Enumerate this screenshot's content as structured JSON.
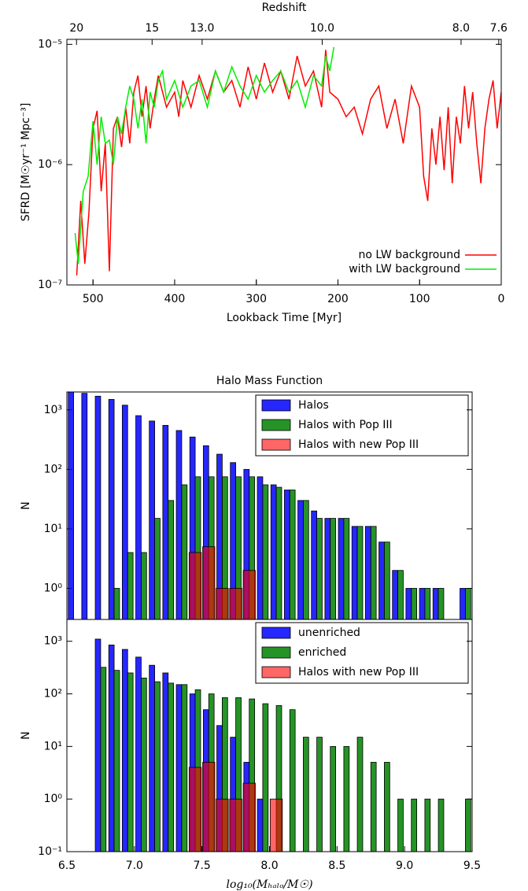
{
  "chart_data": [
    {
      "type": "line",
      "xlabel": "Lookback Time [Myr]",
      "ylabel": "SFRD [M☉yr⁻¹ Mpc⁻³]",
      "x2label": "Redshift",
      "xlim": [
        532,
        0
      ],
      "xticks": [
        500,
        400,
        300,
        200,
        100,
        0
      ],
      "x2ticks": [
        20,
        15,
        {
          "value": 13,
          "label": "13.0"
        },
        {
          "value": 10,
          "label": "10.0"
        },
        {
          "value": 8,
          "label": "8.0"
        },
        7.6
      ],
      "ylim": [
        1e-07,
        1.1e-05
      ],
      "log_y": true,
      "yticks": [
        {
          "value": 1e-07,
          "label": "10⁻⁷"
        },
        {
          "value": 1e-06,
          "label": "10⁻⁶"
        },
        {
          "value": 1e-05,
          "label": "10⁻⁵"
        }
      ],
      "legend": "lower right",
      "series": [
        {
          "name": "no LW background",
          "color": "#ff0000",
          "x": [
            520,
            515,
            510,
            505,
            500,
            495,
            490,
            485,
            480,
            475,
            470,
            465,
            460,
            455,
            450,
            445,
            440,
            435,
            430,
            425,
            420,
            410,
            400,
            395,
            390,
            380,
            370,
            360,
            350,
            340,
            330,
            320,
            310,
            300,
            290,
            280,
            270,
            260,
            250,
            240,
            230,
            220,
            215,
            210,
            200,
            190,
            180,
            170,
            160,
            150,
            140,
            130,
            120,
            110,
            100,
            95,
            90,
            85,
            80,
            75,
            70,
            65,
            60,
            55,
            50,
            45,
            40,
            35,
            30,
            25,
            20,
            15,
            10,
            5,
            0
          ],
          "values": [
            1.2e-07,
            5e-07,
            1.5e-07,
            4e-07,
            2e-06,
            2.8e-06,
            6e-07,
            1.5e-06,
            1.3e-07,
            2e-06,
            2.5e-06,
            1.4e-06,
            3e-06,
            1.5e-06,
            4e-06,
            5.5e-06,
            2.5e-06,
            4.5e-06,
            2e-06,
            3.5e-06,
            5.5e-06,
            3e-06,
            4e-06,
            2.5e-06,
            5e-06,
            3e-06,
            5.5e-06,
            3.5e-06,
            6e-06,
            4e-06,
            5e-06,
            3e-06,
            6.5e-06,
            3.5e-06,
            7e-06,
            4e-06,
            6e-06,
            3.5e-06,
            8e-06,
            4.5e-06,
            6e-06,
            3e-06,
            9e-06,
            4e-06,
            3.5e-06,
            2.5e-06,
            3e-06,
            1.8e-06,
            3.5e-06,
            4.5e-06,
            2e-06,
            3.5e-06,
            1.5e-06,
            4.5e-06,
            3e-06,
            8e-07,
            5e-07,
            2e-06,
            1e-06,
            2.5e-06,
            9e-07,
            3e-06,
            7e-07,
            2.5e-06,
            1.5e-06,
            4.5e-06,
            2e-06,
            4e-06,
            1.5e-06,
            7e-07,
            2e-06,
            3.5e-06,
            5e-06,
            2e-06,
            4e-06
          ]
        },
        {
          "name": "with LW background",
          "color": "#00ee00",
          "x": [
            522,
            518,
            512,
            506,
            500,
            495,
            490,
            485,
            480,
            475,
            470,
            465,
            460,
            455,
            450,
            445,
            440,
            435,
            430,
            425,
            420,
            415,
            410,
            400,
            390,
            380,
            370,
            360,
            350,
            340,
            330,
            320,
            310,
            300,
            290,
            280,
            270,
            260,
            250,
            240,
            230,
            220,
            215,
            210,
            205
          ],
          "values": [
            2.7e-07,
            1.5e-07,
            6e-07,
            8e-07,
            2.3e-06,
            1e-06,
            2.5e-06,
            1.5e-06,
            1.6e-06,
            1e-06,
            2.5e-06,
            1.8e-06,
            3e-06,
            4.5e-06,
            3.5e-06,
            2e-06,
            3.5e-06,
            1.5e-06,
            4e-06,
            3e-06,
            5e-06,
            6e-06,
            3.5e-06,
            5e-06,
            3e-06,
            4.5e-06,
            5e-06,
            3e-06,
            6e-06,
            4e-06,
            6.5e-06,
            4.5e-06,
            3.5e-06,
            5.5e-06,
            4e-06,
            5e-06,
            6e-06,
            4e-06,
            5e-06,
            3e-06,
            5.5e-06,
            4.5e-06,
            8e-06,
            6e-06,
            9.5e-06
          ]
        }
      ]
    },
    {
      "type": "histogram",
      "title": "Halo Mass Function",
      "ylabel": "N",
      "legend": "upper right",
      "bins": [
        6.5,
        6.6,
        6.7,
        6.8,
        6.9,
        7.0,
        7.1,
        7.2,
        7.3,
        7.4,
        7.5,
        7.6,
        7.7,
        7.8,
        7.9,
        8.0,
        8.1,
        8.2,
        8.3,
        8.4,
        8.5,
        8.6,
        8.7,
        8.8,
        8.9,
        9.0,
        9.1,
        9.2,
        9.3,
        9.4,
        9.5
      ],
      "xlim": [
        6.5,
        9.5
      ],
      "ylim": [
        0.3,
        2000
      ],
      "log_y": true,
      "yticks": [
        {
          "value": 1,
          "label": "10⁰"
        },
        {
          "value": 10,
          "label": "10¹"
        },
        {
          "value": 100,
          "label": "10²"
        },
        {
          "value": 1000,
          "label": "10³"
        }
      ],
      "series": [
        {
          "name": "Halos",
          "color": "#0000ff",
          "values": [
            2100,
            1900,
            1700,
            1500,
            1200,
            800,
            650,
            550,
            450,
            350,
            250,
            180,
            130,
            100,
            75,
            55,
            45,
            30,
            20,
            15,
            15,
            11,
            11,
            6,
            2,
            1,
            1,
            1,
            0,
            1
          ]
        },
        {
          "name": "Halos with Pop III",
          "color": "#008000",
          "values": [
            0,
            0,
            0,
            1,
            4,
            4,
            15,
            30,
            55,
            75,
            75,
            75,
            75,
            75,
            55,
            50,
            45,
            30,
            15,
            15,
            15,
            11,
            11,
            6,
            2,
            1,
            1,
            1,
            0,
            1
          ]
        },
        {
          "name": "Halos with new Pop III",
          "color": "#ff0000",
          "overlay": true,
          "values": [
            0,
            0,
            0,
            0,
            0,
            0,
            0,
            0,
            0,
            4,
            5,
            1,
            1,
            2,
            0,
            0,
            0,
            0,
            0,
            0,
            0,
            0,
            0,
            0,
            0,
            0,
            0,
            0,
            0,
            0
          ]
        }
      ]
    },
    {
      "type": "histogram",
      "ylabel": "N",
      "xlabel": "log₁₀(Mₕₐₗₒ/M☉)",
      "legend": "upper right",
      "bins": [
        6.5,
        6.6,
        6.7,
        6.8,
        6.9,
        7.0,
        7.1,
        7.2,
        7.3,
        7.4,
        7.5,
        7.6,
        7.7,
        7.8,
        7.9,
        8.0,
        8.1,
        8.2,
        8.3,
        8.4,
        8.5,
        8.6,
        8.7,
        8.8,
        8.9,
        9.0,
        9.1,
        9.2,
        9.3,
        9.4,
        9.5
      ],
      "xlim": [
        6.5,
        9.5
      ],
      "xticks": [
        6.5,
        {
          "value": 7,
          "label": "7.0"
        },
        7.5,
        {
          "value": 8,
          "label": "8.0"
        },
        8.5,
        {
          "value": 9,
          "label": "9.0"
        },
        9.5
      ],
      "ylim": [
        0.1,
        2600
      ],
      "log_y": true,
      "yticks": [
        {
          "value": 0.1,
          "label": "10⁻¹"
        },
        {
          "value": 1,
          "label": "10⁰"
        },
        {
          "value": 10,
          "label": "10¹"
        },
        {
          "value": 100,
          "label": "10²"
        },
        {
          "value": 1000,
          "label": "10³"
        }
      ],
      "series": [
        {
          "name": "unenriched",
          "color": "#0000ff",
          "values": [
            0,
            0,
            1100,
            850,
            700,
            500,
            350,
            250,
            150,
            100,
            50,
            25,
            15,
            5,
            1,
            0,
            0,
            0,
            0,
            0,
            0,
            0,
            0,
            0,
            0,
            0,
            0,
            0,
            0,
            0
          ]
        },
        {
          "name": "enriched",
          "color": "#008000",
          "values": [
            0,
            0,
            320,
            280,
            250,
            200,
            170,
            160,
            150,
            120,
            100,
            85,
            85,
            80,
            65,
            60,
            50,
            15,
            15,
            10,
            10,
            15,
            5,
            5,
            1,
            1,
            1,
            1,
            0,
            1
          ]
        },
        {
          "name": "Halos with new Pop III",
          "color": "#ff0000",
          "overlay": true,
          "values": [
            0,
            0,
            0,
            0,
            0,
            0,
            0,
            0,
            0,
            4,
            5,
            1,
            1,
            2,
            0,
            1,
            0,
            0,
            0,
            0,
            0,
            0,
            0,
            0,
            0,
            0,
            0,
            0,
            0,
            0
          ]
        }
      ]
    }
  ]
}
